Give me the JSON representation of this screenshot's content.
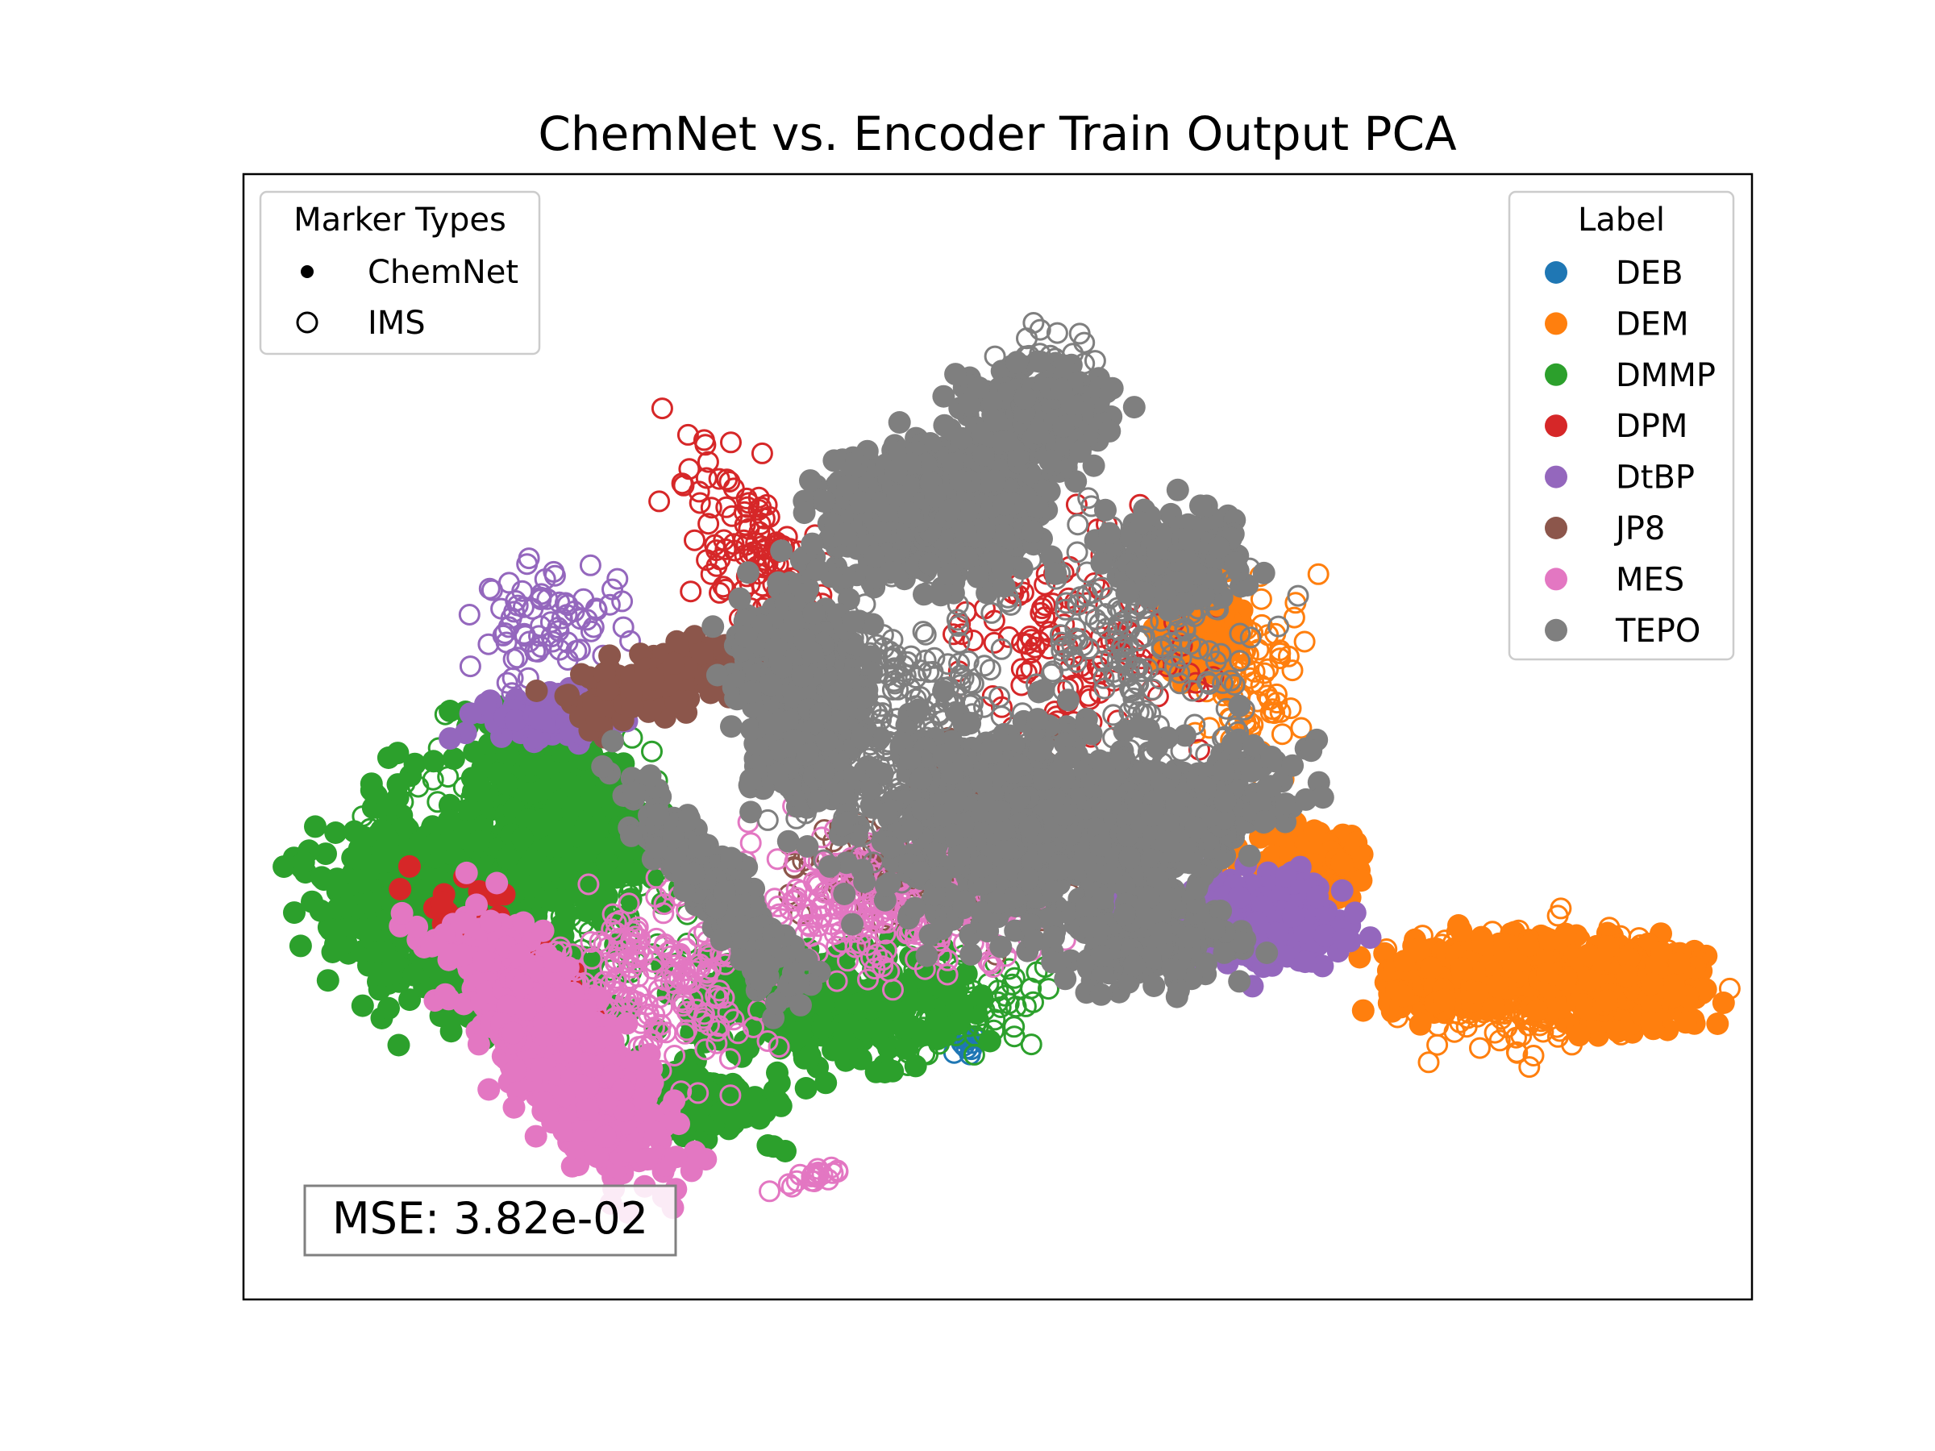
{
  "chart_data": {
    "type": "scatter",
    "title": "ChemNet vs. Encoder Train Output PCA",
    "xlabel": "",
    "ylabel": "",
    "axes_ticks": "none",
    "grid": false,
    "annotation": "MSE: 3.82e-02",
    "marker_legend": {
      "title": "Marker Types",
      "placement": "top-left",
      "entries": [
        {
          "label": "ChemNet",
          "marker": "filled-dot"
        },
        {
          "label": "IMS",
          "marker": "hollow-circle"
        }
      ]
    },
    "label_legend": {
      "title": "Label",
      "placement": "top-right",
      "entries": [
        "DEB",
        "DEM",
        "DMMP",
        "DPM",
        "DtBP",
        "JP8",
        "MES",
        "TEPO"
      ]
    },
    "series": [
      {
        "name": "DEB",
        "color": "#1f77b4",
        "chemnet_centroid": [
          0.49,
          0.25
        ],
        "ims_centroid": [
          0.48,
          0.22
        ],
        "spread": "small"
      },
      {
        "name": "DEM",
        "color": "#ff7f0e",
        "chemnet_centroid": [
          0.8,
          0.28
        ],
        "ims_centroid": [
          0.82,
          0.26
        ],
        "spread": "large, elongated right"
      },
      {
        "name": "DMMP",
        "color": "#2ca02c",
        "chemnet_centroid": [
          0.18,
          0.27
        ],
        "ims_centroid": [
          0.2,
          0.32
        ],
        "spread": "large, lower-left"
      },
      {
        "name": "DPM",
        "color": "#d62728",
        "chemnet_centroid": [
          0.24,
          0.27
        ],
        "ims_centroid": [
          0.4,
          0.45
        ],
        "spread": "medium, diagonal"
      },
      {
        "name": "DtBP",
        "color": "#9467bd",
        "chemnet_centroid": [
          0.62,
          0.31
        ],
        "ims_centroid": [
          0.22,
          0.55
        ],
        "spread": "medium"
      },
      {
        "name": "JP8",
        "color": "#8c564b",
        "chemnet_centroid": [
          0.3,
          0.57
        ],
        "ims_centroid": [
          0.48,
          0.4
        ],
        "spread": "medium"
      },
      {
        "name": "MES",
        "color": "#e377c2",
        "chemnet_centroid": [
          0.25,
          0.21
        ],
        "ims_centroid": [
          0.4,
          0.32
        ],
        "spread": "large, diagonal"
      },
      {
        "name": "TEPO",
        "color": "#7f7f7f",
        "chemnet_centroid": [
          0.45,
          0.56
        ],
        "ims_centroid": [
          0.5,
          0.62
        ],
        "spread": "very large, central"
      }
    ]
  }
}
